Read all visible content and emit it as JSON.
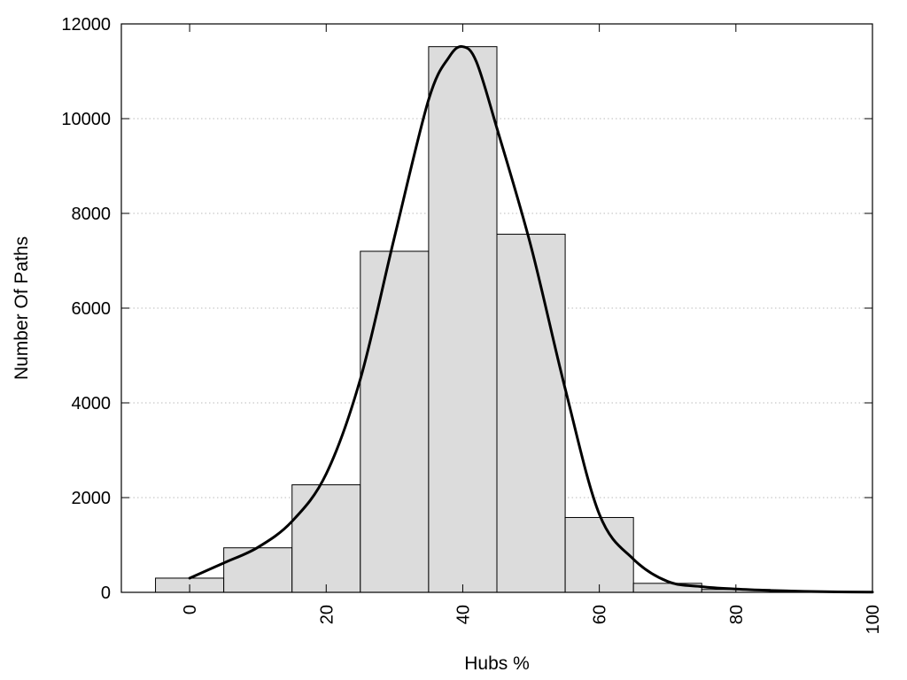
{
  "chart_data": {
    "type": "bar",
    "title": "",
    "xlabel": "Hubs %",
    "ylabel": "Number Of Paths",
    "xlim": [
      -10,
      100
    ],
    "ylim": [
      0,
      12000
    ],
    "grid": true,
    "x_ticks": [
      "0",
      "20",
      "40",
      "60",
      "80",
      "100"
    ],
    "y_ticks": [
      "0",
      "2000",
      "4000",
      "6000",
      "8000",
      "10000",
      "12000"
    ],
    "bin_width": 10,
    "bins": [
      {
        "x": 0,
        "value": 300
      },
      {
        "x": 10,
        "value": 940
      },
      {
        "x": 20,
        "value": 2270
      },
      {
        "x": 30,
        "value": 7200
      },
      {
        "x": 40,
        "value": 11520
      },
      {
        "x": 50,
        "value": 7560
      },
      {
        "x": 60,
        "value": 1580
      },
      {
        "x": 70,
        "value": 190
      },
      {
        "x": 80,
        "value": 60
      },
      {
        "x": 90,
        "value": 20
      }
    ],
    "curve": {
      "x": [
        0,
        5,
        10,
        15,
        20,
        25,
        30,
        35,
        38,
        40,
        42,
        45,
        50,
        55,
        60,
        65,
        70,
        75,
        80,
        85,
        90,
        95,
        100
      ],
      "y": [
        300,
        620,
        950,
        1500,
        2500,
        4500,
        7500,
        10400,
        11300,
        11520,
        11200,
        9800,
        7300,
        4300,
        1650,
        700,
        230,
        120,
        70,
        40,
        20,
        10,
        5
      ]
    },
    "colors": {
      "bar_fill": "#dcdcdc",
      "bar_stroke": "#000000",
      "curve": "#000000",
      "grid": "#bbbbbb"
    }
  }
}
